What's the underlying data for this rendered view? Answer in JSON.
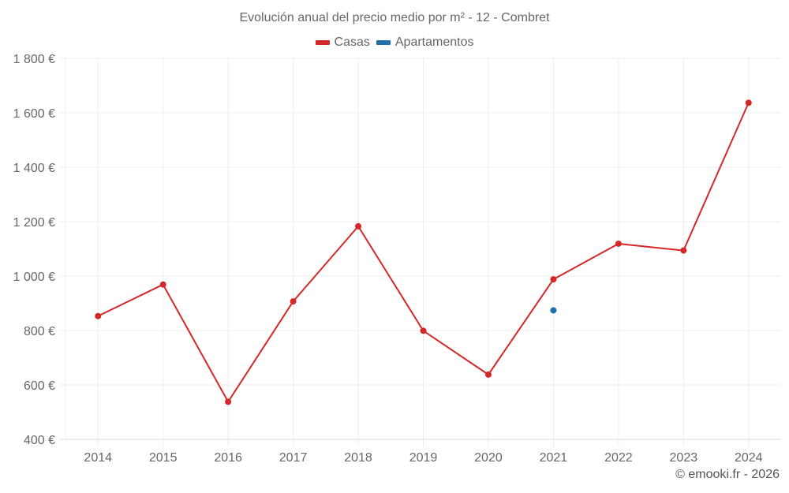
{
  "chart_data": {
    "type": "line",
    "title": "Evolución anual del precio medio por m² - 12 - Combret",
    "xlabel": "",
    "ylabel": "",
    "categories": [
      "2014",
      "2015",
      "2016",
      "2017",
      "2018",
      "2019",
      "2020",
      "2021",
      "2022",
      "2023",
      "2024"
    ],
    "series": [
      {
        "name": "Casas",
        "color": "#d62728",
        "values": [
          853,
          969,
          538,
          907,
          1183,
          799,
          638,
          988,
          1119,
          1094,
          1637
        ]
      },
      {
        "name": "Apartamentos",
        "color": "#1f6fa8",
        "values": [
          null,
          null,
          null,
          null,
          null,
          null,
          null,
          874,
          null,
          null,
          null
        ]
      }
    ],
    "ylim": [
      400,
      1800
    ],
    "yticks": [
      400,
      600,
      800,
      1000,
      1200,
      1400,
      1600,
      1800
    ],
    "ytick_labels": [
      "400 €",
      "600 €",
      "800 €",
      "1 000 €",
      "1 200 €",
      "1 400 €",
      "1 600 €",
      "1 800 €"
    ],
    "grid": true,
    "legend_position": "top"
  },
  "title": "Evolución anual del precio medio por m² - 12 - Combret",
  "legend": [
    {
      "label": "Casas",
      "color": "#d62728"
    },
    {
      "label": "Apartamentos",
      "color": "#1f6fa8"
    }
  ],
  "footer": "© emooki.fr - 2026"
}
